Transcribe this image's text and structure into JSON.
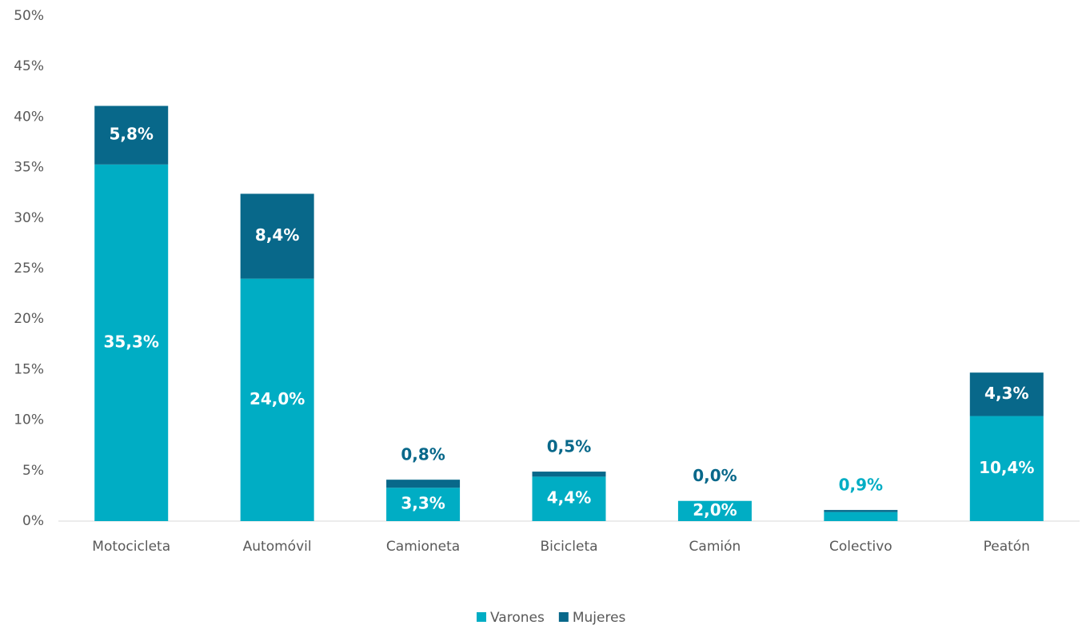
{
  "chart_data": {
    "type": "stacked_bar",
    "categories": [
      "Motocicleta",
      "Automóvil",
      "Camioneta",
      "Bicicleta",
      "Camión",
      "Colectivo",
      "Peatón"
    ],
    "series": [
      {
        "name": "Varones",
        "color": "#00adc4",
        "values": [
          35.3,
          24.0,
          3.3,
          4.4,
          2.0,
          0.9,
          10.4
        ],
        "value_labels": [
          "35,3%",
          "24,0%",
          "3,3%",
          "4,4%",
          "2,0%",
          "0,9%",
          "10,4%"
        ]
      },
      {
        "name": "Mujeres",
        "color": "#08688a",
        "values": [
          5.8,
          8.4,
          0.8,
          0.5,
          0.0,
          0.2,
          4.3
        ],
        "value_labels": [
          "5,8%",
          "8,4%",
          "0,8%",
          "0,5%",
          "0,0%",
          null,
          "4,3%"
        ]
      }
    ],
    "ylim": [
      0,
      50
    ],
    "yticks": [
      {
        "value": 0,
        "label": "0%"
      },
      {
        "value": 5,
        "label": "5%"
      },
      {
        "value": 10,
        "label": "10%"
      },
      {
        "value": 15,
        "label": "15%"
      },
      {
        "value": 20,
        "label": "20%"
      },
      {
        "value": 25,
        "label": "25%"
      },
      {
        "value": 30,
        "label": "30%"
      },
      {
        "value": 35,
        "label": "35%"
      },
      {
        "value": 40,
        "label": "40%"
      },
      {
        "value": 45,
        "label": "45%"
      },
      {
        "value": 50,
        "label": "50%"
      }
    ],
    "legend": "bottom"
  }
}
